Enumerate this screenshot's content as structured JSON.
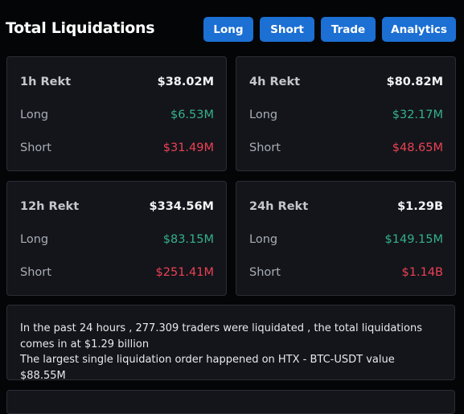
{
  "header": {
    "title": "Total Liquidations",
    "buttons": [
      "Long",
      "Short",
      "Trade",
      "Analytics"
    ]
  },
  "cards": [
    {
      "title": "1h Rekt",
      "total": "$38.02M",
      "rows": [
        {
          "label": "Long",
          "value": "$6.53M"
        },
        {
          "label": "Short",
          "value": "$31.49M"
        }
      ]
    },
    {
      "title": "4h Rekt",
      "total": "$80.82M",
      "rows": [
        {
          "label": "Long",
          "value": "$32.17M"
        },
        {
          "label": "Short",
          "value": "$48.65M"
        }
      ]
    },
    {
      "title": "12h Rekt",
      "total": "$334.56M",
      "rows": [
        {
          "label": "Long",
          "value": "$83.15M"
        },
        {
          "label": "Short",
          "value": "$251.41M"
        }
      ]
    },
    {
      "title": "24h Rekt",
      "total": "$1.29B",
      "rows": [
        {
          "label": "Long",
          "value": "$149.15M"
        },
        {
          "label": "Short",
          "value": "$1.14B"
        }
      ]
    }
  ],
  "summary": {
    "lines": [
      "In the past 24 hours , 277.309 traders were liquidated , the total liquidations comes in at $1.29 billion",
      "The largest single liquidation order happened on HTX - BTC-USDT value $88.55M"
    ]
  }
}
